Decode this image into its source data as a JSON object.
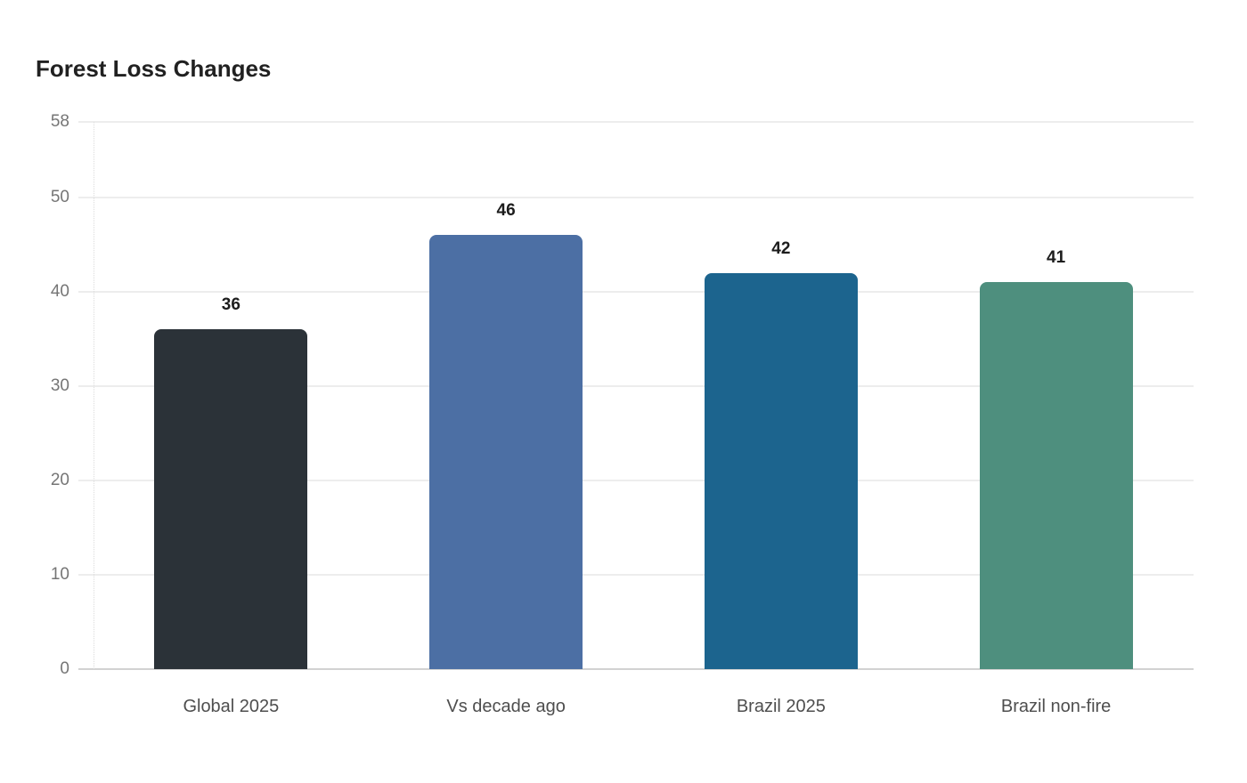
{
  "title": "Forest Loss Changes",
  "colors": {
    "background": "#ffffff",
    "title_text": "#212121",
    "grid_line": "#ededed",
    "zero_line": "#d2d2d2",
    "axis_dotted_line": "#dcdcdc",
    "tick_text": "#757575",
    "category_text": "#4e4e4e",
    "value_label_text": "#1c1c1c"
  },
  "chart_data": {
    "type": "bar",
    "title": "Forest Loss Changes",
    "categories": [
      "Global 2025",
      "Vs decade ago",
      "Brazil 2025",
      "Brazil non-fire"
    ],
    "values": [
      36,
      46,
      42,
      41
    ],
    "bar_colors": [
      "#2b3238",
      "#4c6fa4",
      "#1c648e",
      "#4e8f7e"
    ],
    "value_labels": [
      36,
      46,
      42,
      41
    ],
    "xlabel": "",
    "ylabel": "",
    "ylim": [
      0,
      58
    ],
    "yticks": [
      0,
      10,
      20,
      30,
      40,
      50,
      58
    ],
    "grid": "horizontal",
    "legend": "none"
  }
}
